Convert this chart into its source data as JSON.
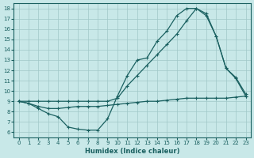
{
  "bg_color": "#c8e8e8",
  "grid_color": "#a0c8c8",
  "line_color": "#1a6060",
  "xlabel": "Humidex (Indice chaleur)",
  "xlim": [
    -0.5,
    23.5
  ],
  "ylim": [
    5.5,
    18.5
  ],
  "xticks": [
    0,
    1,
    2,
    3,
    4,
    5,
    6,
    7,
    8,
    9,
    10,
    11,
    12,
    13,
    14,
    15,
    16,
    17,
    18,
    19,
    20,
    21,
    22,
    23
  ],
  "yticks": [
    6,
    7,
    8,
    9,
    10,
    11,
    12,
    13,
    14,
    15,
    16,
    17,
    18
  ],
  "line1_x": [
    0,
    1,
    2,
    3,
    4,
    5,
    6,
    7,
    8,
    9,
    10,
    11,
    12,
    13,
    14,
    15,
    16,
    17,
    18,
    19,
    20,
    21,
    22,
    23
  ],
  "line1_y": [
    9.0,
    9.0,
    9.0,
    9.0,
    9.0,
    9.0,
    9.0,
    9.0,
    9.0,
    9.0,
    9.3,
    10.5,
    11.5,
    12.5,
    13.5,
    14.5,
    15.5,
    16.8,
    18.0,
    17.5,
    15.3,
    12.2,
    11.2,
    9.5
  ],
  "line2_x": [
    0,
    1,
    2,
    3,
    4,
    5,
    6,
    7,
    8,
    9,
    10,
    11,
    12,
    13,
    14,
    15,
    16,
    17,
    18,
    19,
    20,
    21,
    22,
    23
  ],
  "line2_y": [
    9.0,
    8.8,
    8.3,
    7.8,
    7.5,
    6.5,
    6.3,
    6.2,
    6.2,
    7.3,
    9.5,
    11.5,
    13.0,
    13.2,
    14.8,
    15.8,
    17.3,
    18.0,
    18.0,
    17.3,
    15.3,
    12.2,
    11.3,
    9.7
  ],
  "line3_x": [
    0,
    1,
    2,
    3,
    4,
    5,
    6,
    7,
    8,
    9,
    10,
    11,
    12,
    13,
    14,
    15,
    16,
    17,
    18,
    19,
    20,
    21,
    22,
    23
  ],
  "line3_y": [
    9.0,
    8.8,
    8.5,
    8.3,
    8.3,
    8.4,
    8.5,
    8.5,
    8.5,
    8.6,
    8.7,
    8.8,
    8.9,
    9.0,
    9.0,
    9.1,
    9.2,
    9.3,
    9.3,
    9.3,
    9.3,
    9.3,
    9.4,
    9.5
  ]
}
